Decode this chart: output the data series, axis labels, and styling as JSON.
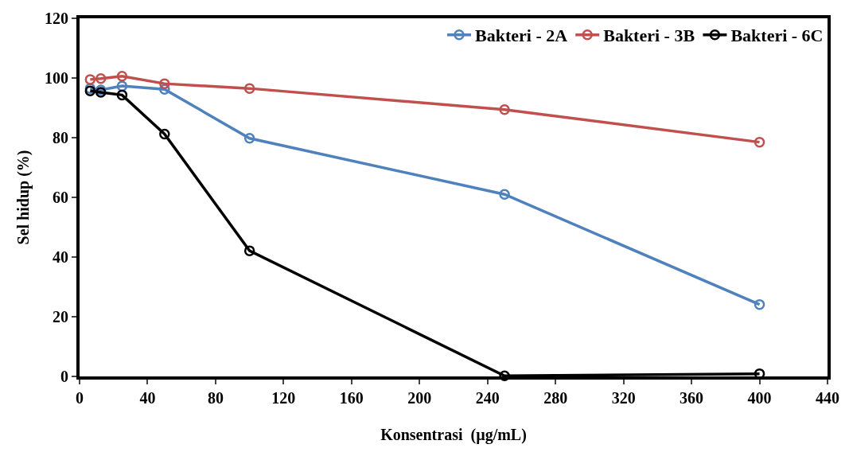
{
  "chart_data": {
    "type": "line",
    "xlabel": "Konsentrasi  (µg/mL)",
    "ylabel": "Sel hidup (%)",
    "x": [
      6.25,
      12.5,
      25,
      50,
      100,
      250,
      400
    ],
    "series": [
      {
        "name": "Bakteri - 2A",
        "color": "#4f81bd",
        "values": [
          96.5,
          96,
          97.3,
          96.2,
          79.8,
          61,
          24.1
        ]
      },
      {
        "name": "Bakteri - 3B",
        "color": "#c0504d",
        "values": [
          99.5,
          99.8,
          100.6,
          98.1,
          96.5,
          89.4,
          78.5
        ]
      },
      {
        "name": "Bakteri - 6C",
        "color": "#000000",
        "values": [
          95.7,
          95.2,
          94.3,
          81.2,
          42.1,
          0.2,
          0.9
        ]
      }
    ],
    "xlim": [
      0,
      440
    ],
    "xticks": [
      0,
      40,
      80,
      120,
      160,
      200,
      240,
      280,
      320,
      360,
      400,
      440
    ],
    "ylim": [
      0,
      120
    ],
    "yticks": [
      0,
      20,
      40,
      60,
      80,
      100,
      120
    ],
    "grid": false,
    "legend": "top right",
    "marker": "circle",
    "line_style": "solid"
  }
}
